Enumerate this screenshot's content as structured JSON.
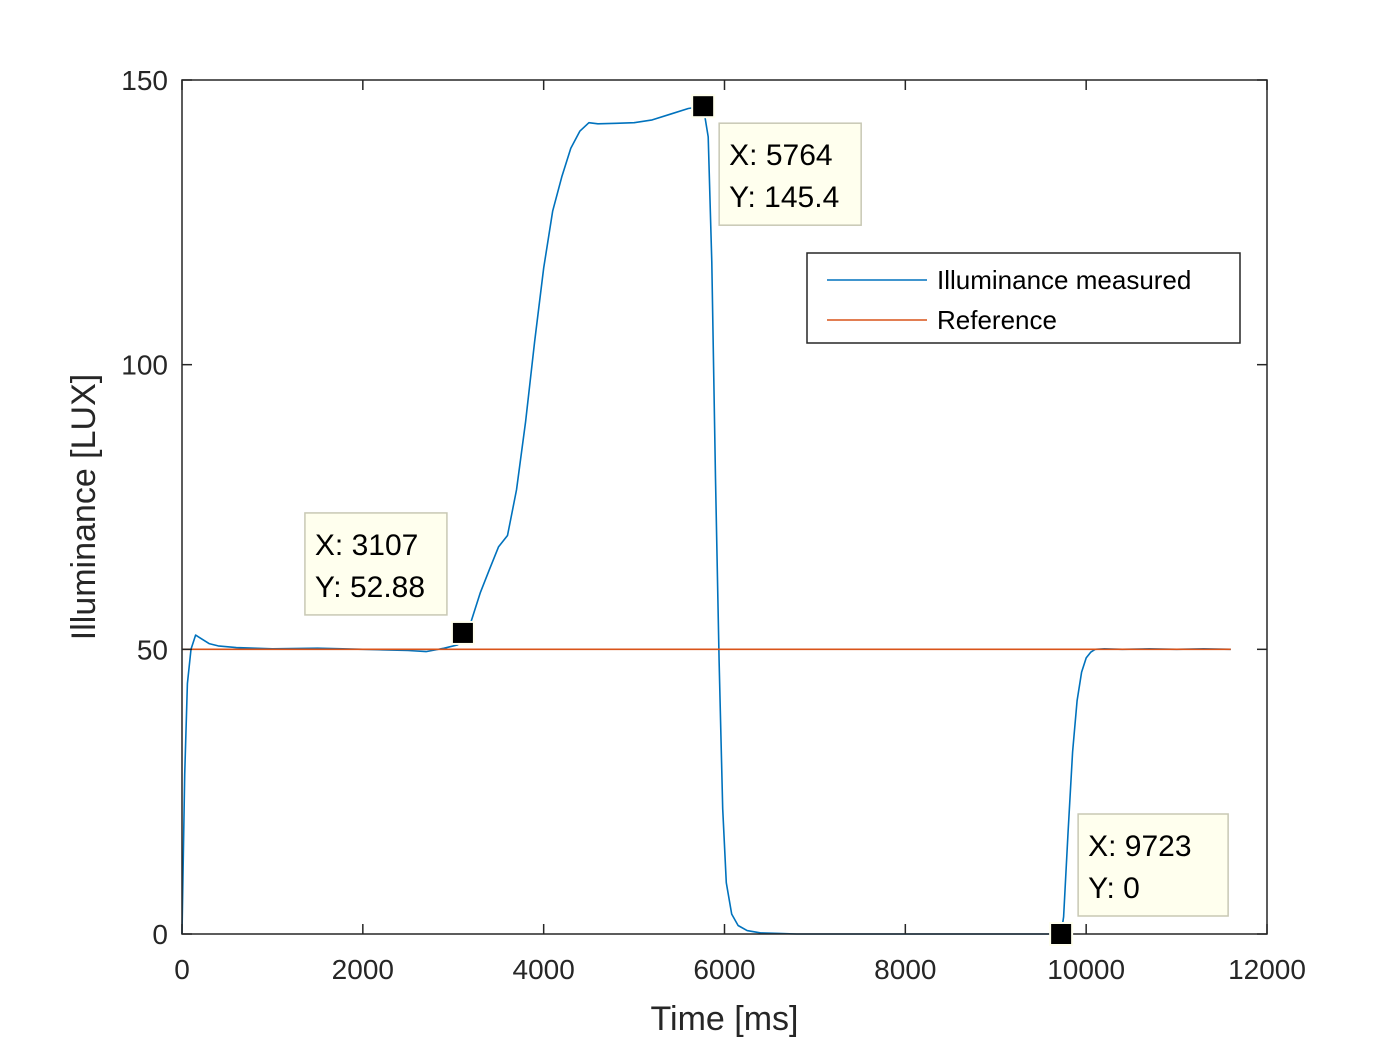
{
  "chart_data": {
    "type": "line",
    "xlabel": "Time [ms]",
    "ylabel": "Illuminance [LUX]",
    "xlim": [
      0,
      12000
    ],
    "ylim": [
      0,
      150
    ],
    "xticks": [
      0,
      2000,
      4000,
      6000,
      8000,
      10000,
      12000
    ],
    "yticks": [
      0,
      50,
      100,
      150
    ],
    "grid": false,
    "legend_position": "top-right",
    "series": [
      {
        "name": "Illuminance measured",
        "color": "#0072BD",
        "x": [
          0,
          30,
          60,
          100,
          150,
          200,
          300,
          400,
          600,
          800,
          1000,
          1500,
          2000,
          2500,
          2700,
          2900,
          3050,
          3107,
          3200,
          3300,
          3400,
          3500,
          3600,
          3700,
          3800,
          3900,
          4000,
          4100,
          4200,
          4300,
          4400,
          4500,
          4600,
          4800,
          5000,
          5200,
          5400,
          5600,
          5764,
          5820,
          5860,
          5900,
          5940,
          5980,
          6020,
          6080,
          6150,
          6250,
          6400,
          6600,
          6800,
          7000,
          8000,
          9000,
          9723,
          9750,
          9800,
          9850,
          9900,
          9950,
          10000,
          10050,
          10100,
          10200,
          10400,
          10700,
          11000,
          11300,
          11600
        ],
        "values": [
          0,
          28,
          44,
          50,
          52.5,
          52,
          51,
          50.6,
          50.3,
          50.2,
          50.1,
          50.2,
          50,
          49.8,
          49.6,
          50.2,
          50.8,
          52.88,
          55,
          60,
          64,
          68,
          70,
          78,
          90,
          104,
          117,
          127,
          133,
          138,
          141,
          142.5,
          142.3,
          142.4,
          142.5,
          143,
          144,
          145,
          145.4,
          140,
          118,
          80,
          48,
          22,
          9,
          3.5,
          1.5,
          0.6,
          0.2,
          0.1,
          0,
          0,
          0,
          0,
          0,
          3,
          18,
          32,
          41,
          46,
          48.5,
          49.5,
          50,
          50.1,
          50,
          50.1,
          50,
          50.1,
          50
        ]
      },
      {
        "name": "Reference",
        "color": "#D95319",
        "x": [
          0,
          11600
        ],
        "values": [
          50,
          50
        ]
      }
    ],
    "datatips": [
      {
        "x": 3107,
        "y": 52.88,
        "x_text": "X: 3107",
        "y_text": "Y: 52.88"
      },
      {
        "x": 5764,
        "y": 145.4,
        "x_text": "X: 5764",
        "y_text": "Y: 145.4"
      },
      {
        "x": 9723,
        "y": 0,
        "x_text": "X: 9723",
        "y_text": "Y: 0"
      }
    ]
  }
}
